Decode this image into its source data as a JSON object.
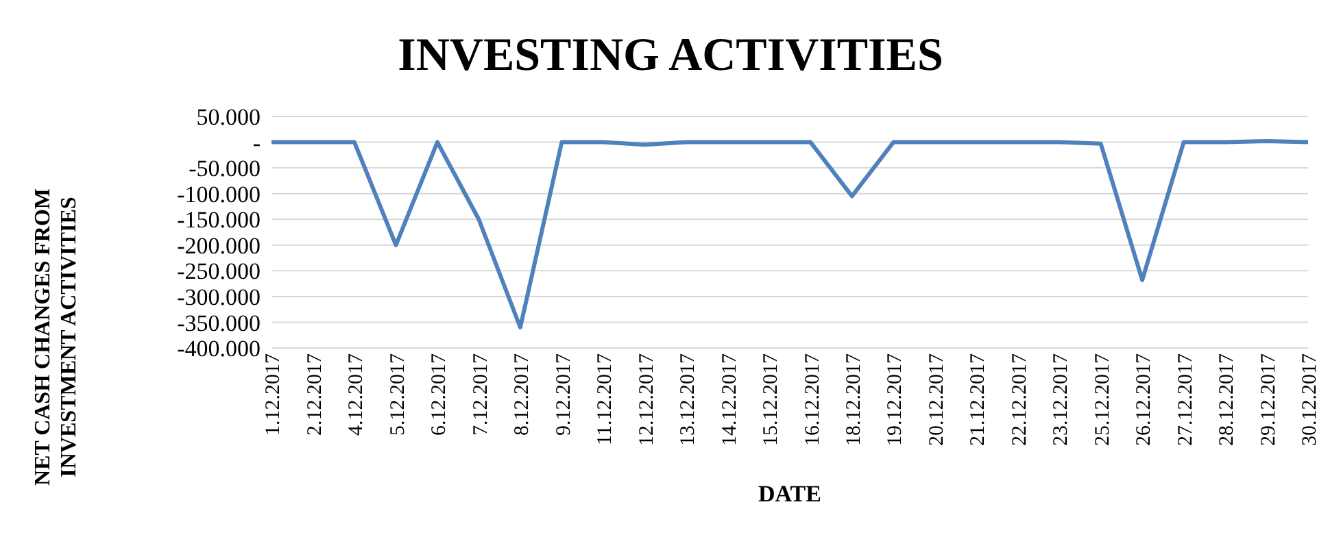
{
  "chart_data": {
    "type": "line",
    "title": "INVESTING ACTIVITIES",
    "xlabel": "DATE",
    "ylabel": "NET CASH CHANGES FROM INVESTMENT ACTIVITIES",
    "categories": [
      "1.12.2017",
      "2.12.2017",
      "4.12.2017",
      "5.12.2017",
      "6.12.2017",
      "7.12.2017",
      "8.12.2017",
      "9.12.2017",
      "11.12.2017",
      "12.12.2017",
      "13.12.2017",
      "14.12.2017",
      "15.12.2017",
      "16.12.2017",
      "18.12.2017",
      "19.12.2017",
      "20.12.2017",
      "21.12.2017",
      "22.12.2017",
      "23.12.2017",
      "25.12.2017",
      "26.12.2017",
      "27.12.2017",
      "28.12.2017",
      "29.12.2017",
      "30.12.2017"
    ],
    "series": [
      {
        "color": "#4f81bd",
        "values": [
          0,
          0,
          0,
          -200,
          0,
          -150,
          -360,
          0,
          0,
          -5,
          0,
          0,
          0,
          0,
          -105,
          0,
          0,
          0,
          0,
          0,
          -3,
          -268,
          0,
          0,
          2,
          0
        ]
      }
    ],
    "ylim": [
      -400,
      50
    ],
    "yticks": [
      {
        "value": 50,
        "label": "50.000"
      },
      {
        "value": 0,
        "label": "-"
      },
      {
        "value": -50,
        "label": "-50.000"
      },
      {
        "value": -100,
        "label": "-100.000"
      },
      {
        "value": -150,
        "label": "-150.000"
      },
      {
        "value": -200,
        "label": "-200.000"
      },
      {
        "value": -250,
        "label": "-250.000"
      },
      {
        "value": -300,
        "label": "-300.000"
      },
      {
        "value": -350,
        "label": "-350.000"
      },
      {
        "value": -400,
        "label": "-400.000"
      }
    ],
    "grid": "y",
    "legend": false,
    "marker": "none",
    "line_style": "solid"
  }
}
